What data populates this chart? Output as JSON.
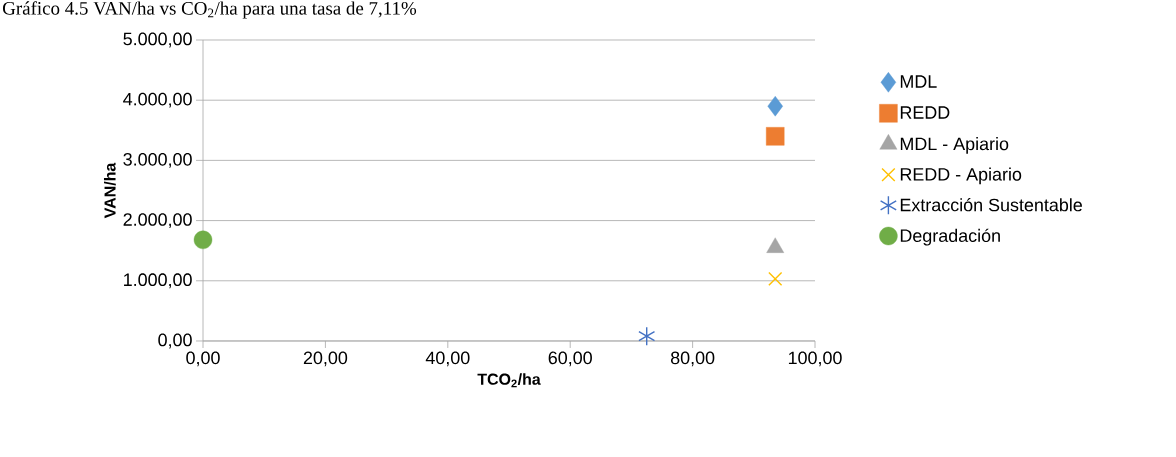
{
  "chart_data": {
    "type": "scatter",
    "title": "Gráfico 4.5 VAN/ha vs CO$_{2}$/ha para una tasa de 7,11%",
    "xlabel": "TCO$_{2}$/ha",
    "ylabel": "VAN/ha",
    "xlim": [
      0,
      100
    ],
    "ylim": [
      0,
      5000
    ],
    "xticks": [
      {
        "value": 0,
        "label": "0,00"
      },
      {
        "value": 20,
        "label": "20,00"
      },
      {
        "value": 40,
        "label": "40,00"
      },
      {
        "value": 60,
        "label": "60,00"
      },
      {
        "value": 80,
        "label": "80,00"
      },
      {
        "value": 100,
        "label": "100,00"
      }
    ],
    "yticks": [
      {
        "value": 0,
        "label": "0,00"
      },
      {
        "value": 1000,
        "label": "1.000,00"
      },
      {
        "value": 2000,
        "label": "2.000,00"
      },
      {
        "value": 3000,
        "label": "3.000,00"
      },
      {
        "value": 4000,
        "label": "4.000,00"
      },
      {
        "value": 5000,
        "label": "5.000,00"
      }
    ],
    "grid": "y",
    "legend": "right",
    "series": [
      {
        "name": "MDL",
        "color": "#5b9bd5",
        "marker": "diamond",
        "x": [
          93.5
        ],
        "values": [
          3900
        ]
      },
      {
        "name": "REDD",
        "color": "#ed7d31",
        "marker": "square",
        "x": [
          93.5
        ],
        "values": [
          3400
        ]
      },
      {
        "name": "MDL - Apiario",
        "color": "#a5a5a5",
        "marker": "triangle",
        "x": [
          93.5
        ],
        "values": [
          1550
        ]
      },
      {
        "name": "REDD - Apiario",
        "color": "#ffc000",
        "marker": "cross",
        "x": [
          93.5
        ],
        "values": [
          1030
        ]
      },
      {
        "name": "Extracción Sustentable",
        "color": "#4472c4",
        "x": [
          72.5
        ],
        "values": [
          80
        ]
      },
      {
        "name": "Degradación",
        "color": "#70ad47",
        "marker": "circle",
        "x": [
          0
        ],
        "values": [
          1680
        ]
      }
    ]
  }
}
